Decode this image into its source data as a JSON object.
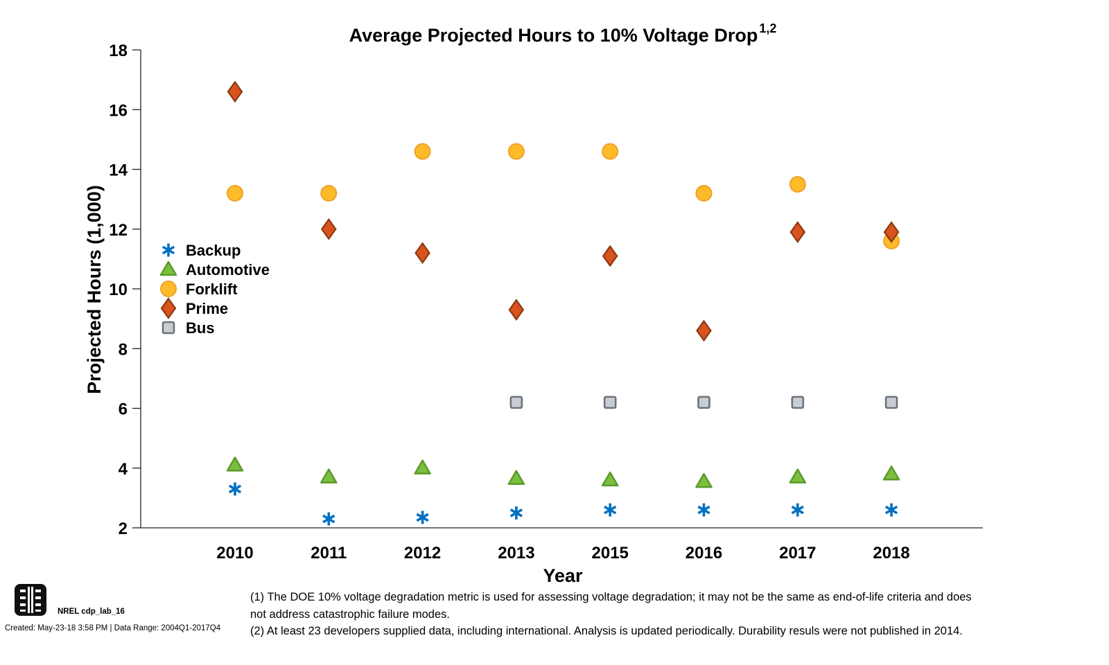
{
  "chart_data": {
    "type": "scatter",
    "title": "Average Projected Hours to 10% Voltage Drop",
    "title_superscript": "1,2",
    "xlabel": "Year",
    "ylabel": "Projected Hours (1,000)",
    "ylim": [
      2,
      18
    ],
    "yticks": [
      2,
      4,
      6,
      8,
      10,
      12,
      14,
      16,
      18
    ],
    "categories": [
      "2010",
      "2011",
      "2012",
      "2013",
      "2015",
      "2016",
      "2017",
      "2018"
    ],
    "grid": false,
    "legend_position": "left-middle",
    "series": [
      {
        "name": "Backup",
        "marker": "asterisk",
        "color": "#0070C0",
        "values": [
          3.3,
          2.3,
          2.35,
          2.5,
          2.6,
          2.6,
          2.6,
          2.6
        ]
      },
      {
        "name": "Automotive",
        "marker": "triangle",
        "color": "#7CBF3F",
        "stroke": "#5A9A2B",
        "values": [
          4.1,
          3.7,
          4.0,
          3.65,
          3.6,
          3.55,
          3.7,
          3.8
        ]
      },
      {
        "name": "Forklift",
        "marker": "circle",
        "color": "#FDBB2A",
        "stroke": "#F0A028",
        "values": [
          13.2,
          13.2,
          14.6,
          14.6,
          14.6,
          13.2,
          13.5,
          11.6
        ]
      },
      {
        "name": "Prime",
        "marker": "diamond",
        "color": "#D9531E",
        "stroke": "#8B3A12",
        "values": [
          16.6,
          12.0,
          11.2,
          9.3,
          11.1,
          8.6,
          11.9,
          11.9
        ]
      },
      {
        "name": "Bus",
        "marker": "square",
        "color": "#C8CDD3",
        "stroke": "#6C737B",
        "values": [
          null,
          null,
          null,
          6.2,
          6.2,
          6.2,
          6.2,
          6.2
        ]
      }
    ]
  },
  "footnotes": {
    "note1_line1": "(1) The DOE 10% voltage degradation metric is used for assessing voltage degradation; it may not be the same as end-of-life criteria and does",
    "note1_line2": "not address catastrophic failure modes.",
    "note2": "(2) At least 23 developers supplied data, including international. Analysis is updated periodically. Durability resuls were not published in 2014."
  },
  "branding": {
    "logo_icon": "nrel-logo-icon",
    "label": "NREL cdp_lab_16",
    "created": "Created: May-23-18  3:58 PM | Data Range: 2004Q1-2017Q4"
  }
}
